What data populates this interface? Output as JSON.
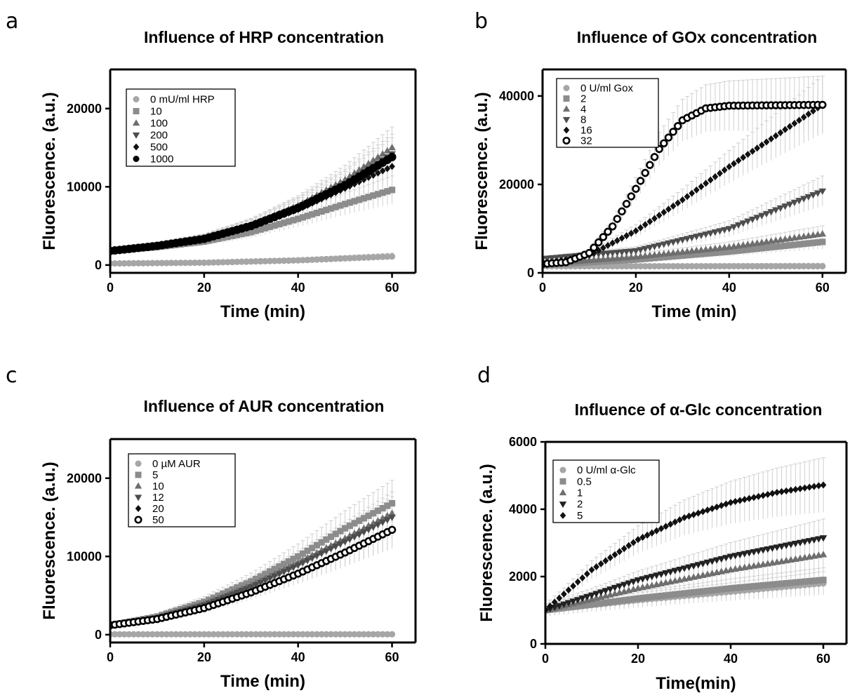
{
  "chart_data": [
    {
      "panel": "a",
      "type": "scatter",
      "title": "Influence of HRP concentration",
      "xlabel": "Time (min)",
      "ylabel": "Fluorescence. (a.u.)",
      "xlim": [
        0,
        65
      ],
      "ylim": [
        -1000,
        25000
      ],
      "xticks": [
        0,
        20,
        40,
        60
      ],
      "yticks": [
        0,
        10000,
        20000
      ],
      "error_bars": true,
      "legend_position": "top-left",
      "series": [
        {
          "name": "0 mU/ml HRP",
          "marker": "circle",
          "color": "#a6a6a6",
          "points": [
            [
              0,
              200
            ],
            [
              10,
              250
            ],
            [
              20,
              300
            ],
            [
              30,
              450
            ],
            [
              40,
              600
            ],
            [
              50,
              850
            ],
            [
              60,
              1100
            ]
          ]
        },
        {
          "name": "10",
          "marker": "square",
          "color": "#8c8c8c",
          "points": [
            [
              0,
              1800
            ],
            [
              10,
              2300
            ],
            [
              20,
              3000
            ],
            [
              30,
              4200
            ],
            [
              40,
              5900
            ],
            [
              50,
              7800
            ],
            [
              60,
              9600
            ]
          ]
        },
        {
          "name": "100",
          "marker": "triangle-up",
          "color": "#6e6e6e",
          "points": [
            [
              0,
              1800
            ],
            [
              10,
              2500
            ],
            [
              20,
              3400
            ],
            [
              30,
              5100
            ],
            [
              40,
              7600
            ],
            [
              50,
              10900
            ],
            [
              60,
              15000
            ]
          ]
        },
        {
          "name": "200",
          "marker": "triangle-down",
          "color": "#4d4d4d",
          "points": [
            [
              0,
              1800
            ],
            [
              10,
              2450
            ],
            [
              20,
              3350
            ],
            [
              30,
              5000
            ],
            [
              40,
              7400
            ],
            [
              50,
              10400
            ],
            [
              60,
              14200
            ]
          ]
        },
        {
          "name": "500",
          "marker": "diamond",
          "color": "#111111",
          "points": [
            [
              0,
              1800
            ],
            [
              10,
              2400
            ],
            [
              20,
              3300
            ],
            [
              30,
              4900
            ],
            [
              40,
              7100
            ],
            [
              50,
              9800
            ],
            [
              60,
              12600
            ]
          ]
        },
        {
          "name": "1000",
          "marker": "circle",
          "color": "#000000",
          "points": [
            [
              0,
              1800
            ],
            [
              10,
              2450
            ],
            [
              20,
              3350
            ],
            [
              30,
              5000
            ],
            [
              40,
              7300
            ],
            [
              50,
              10200
            ],
            [
              60,
              13800
            ]
          ]
        }
      ]
    },
    {
      "panel": "b",
      "type": "scatter",
      "title": "Influence of GOx concentration",
      "xlabel": "Time (min)",
      "ylabel": "Fluorescence. (a.u.)",
      "xlim": [
        0,
        65
      ],
      "ylim": [
        0,
        46000
      ],
      "xticks": [
        0,
        20,
        40,
        60
      ],
      "yticks": [
        0,
        20000,
        40000
      ],
      "error_bars": true,
      "legend_position": "top-left",
      "series": [
        {
          "name": "0 U/ml Gox",
          "marker": "circle",
          "color": "#a6a6a6",
          "points": [
            [
              0,
              1500
            ],
            [
              20,
              1500
            ],
            [
              40,
              1500
            ],
            [
              60,
              1500
            ]
          ]
        },
        {
          "name": "2",
          "marker": "square",
          "color": "#8c8c8c",
          "points": [
            [
              0,
              1800
            ],
            [
              20,
              3000
            ],
            [
              40,
              4800
            ],
            [
              60,
              7000
            ]
          ]
        },
        {
          "name": "4",
          "marker": "triangle-up",
          "color": "#6e6e6e",
          "points": [
            [
              0,
              2000
            ],
            [
              20,
              3600
            ],
            [
              40,
              5800
            ],
            [
              60,
              8800
            ]
          ]
        },
        {
          "name": "8",
          "marker": "triangle-down",
          "color": "#4d4d4d",
          "points": [
            [
              0,
              3200
            ],
            [
              20,
              5000
            ],
            [
              40,
              10000
            ],
            [
              60,
              18500
            ]
          ]
        },
        {
          "name": "16",
          "marker": "diamond",
          "color": "#111111",
          "points": [
            [
              0,
              1900
            ],
            [
              10,
              4000
            ],
            [
              20,
              9500
            ],
            [
              30,
              16500
            ],
            [
              40,
              24000
            ],
            [
              50,
              31000
            ],
            [
              60,
              38000
            ]
          ]
        },
        {
          "name": "32",
          "marker": "open-circle",
          "color": "#000000",
          "points": [
            [
              0,
              2000
            ],
            [
              5,
              2400
            ],
            [
              10,
              4500
            ],
            [
              15,
              10500
            ],
            [
              20,
              19000
            ],
            [
              25,
              28000
            ],
            [
              30,
              34500
            ],
            [
              35,
              37200
            ],
            [
              40,
              37800
            ],
            [
              50,
              37900
            ],
            [
              60,
              38000
            ]
          ]
        }
      ]
    },
    {
      "panel": "c",
      "type": "scatter",
      "title": "Influence of AUR concentration",
      "xlabel": "Time (min)",
      "ylabel": "Fluorescence. (a.u.)",
      "xlim": [
        0,
        65
      ],
      "ylim": [
        -1000,
        25000
      ],
      "xticks": [
        0,
        20,
        40,
        60
      ],
      "yticks": [
        0,
        10000,
        20000
      ],
      "error_bars": true,
      "legend_position": "top-left",
      "series": [
        {
          "name": "0 µM AUR",
          "marker": "circle",
          "color": "#a6a6a6",
          "points": [
            [
              0,
              50
            ],
            [
              20,
              50
            ],
            [
              40,
              50
            ],
            [
              60,
              50
            ]
          ]
        },
        {
          "name": "5",
          "marker": "square",
          "color": "#8c8c8c",
          "points": [
            [
              0,
              1200
            ],
            [
              10,
              2300
            ],
            [
              20,
              4200
            ],
            [
              30,
              6800
            ],
            [
              40,
              10000
            ],
            [
              50,
              13600
            ],
            [
              60,
              16800
            ]
          ]
        },
        {
          "name": "10",
          "marker": "triangle-up",
          "color": "#6e6e6e",
          "points": [
            [
              0,
              1200
            ],
            [
              10,
              2200
            ],
            [
              20,
              3900
            ],
            [
              30,
              6300
            ],
            [
              40,
              9200
            ],
            [
              50,
              12300
            ],
            [
              60,
              15500
            ]
          ]
        },
        {
          "name": "12",
          "marker": "triangle-down",
          "color": "#4d4d4d",
          "points": [
            [
              0,
              1200
            ],
            [
              10,
              2150
            ],
            [
              20,
              3800
            ],
            [
              30,
              6100
            ],
            [
              40,
              8900
            ],
            [
              50,
              11900
            ],
            [
              60,
              15000
            ]
          ]
        },
        {
          "name": "20",
          "marker": "diamond",
          "color": "#111111",
          "points": [
            [
              0,
              1200
            ],
            [
              10,
              2000
            ],
            [
              20,
              3400
            ],
            [
              30,
              5400
            ],
            [
              40,
              7800
            ],
            [
              50,
              10500
            ],
            [
              60,
              13400
            ]
          ]
        },
        {
          "name": "50",
          "marker": "open-circle",
          "color": "#000000",
          "points": [
            [
              0,
              1200
            ],
            [
              10,
              2000
            ],
            [
              20,
              3400
            ],
            [
              30,
              5400
            ],
            [
              40,
              7800
            ],
            [
              50,
              10500
            ],
            [
              60,
              13400
            ]
          ]
        }
      ]
    },
    {
      "panel": "d",
      "type": "scatter",
      "title": "Influence of α-Glc concentration",
      "xlabel": "Time(min)",
      "ylabel": "Fluorescence. (a.u.)",
      "xlim": [
        0,
        65
      ],
      "ylim": [
        0,
        6000
      ],
      "xticks": [
        0,
        20,
        40,
        60
      ],
      "yticks": [
        0,
        2000,
        4000,
        6000
      ],
      "error_bars": true,
      "legend_position": "top-left",
      "series": [
        {
          "name": "0 U/ml α-Glc",
          "marker": "circle",
          "color": "#a6a6a6",
          "points": [
            [
              0,
              1000
            ],
            [
              20,
              1300
            ],
            [
              40,
              1550
            ],
            [
              60,
              1800
            ]
          ]
        },
        {
          "name": "0.5",
          "marker": "square",
          "color": "#8c8c8c",
          "points": [
            [
              0,
              1000
            ],
            [
              20,
              1350
            ],
            [
              40,
              1650
            ],
            [
              60,
              1900
            ]
          ]
        },
        {
          "name": "1",
          "marker": "triangle-up",
          "color": "#6e6e6e",
          "points": [
            [
              0,
              1000
            ],
            [
              20,
              1650
            ],
            [
              40,
              2200
            ],
            [
              60,
              2650
            ]
          ]
        },
        {
          "name": "2",
          "marker": "triangle-down",
          "color": "#222222",
          "points": [
            [
              0,
              1000
            ],
            [
              20,
              1900
            ],
            [
              40,
              2600
            ],
            [
              60,
              3150
            ]
          ]
        },
        {
          "name": "5",
          "marker": "diamond",
          "color": "#111111",
          "points": [
            [
              0,
              1000
            ],
            [
              10,
              2200
            ],
            [
              20,
              3100
            ],
            [
              30,
              3750
            ],
            [
              40,
              4200
            ],
            [
              50,
              4500
            ],
            [
              60,
              4720
            ]
          ]
        }
      ]
    }
  ]
}
